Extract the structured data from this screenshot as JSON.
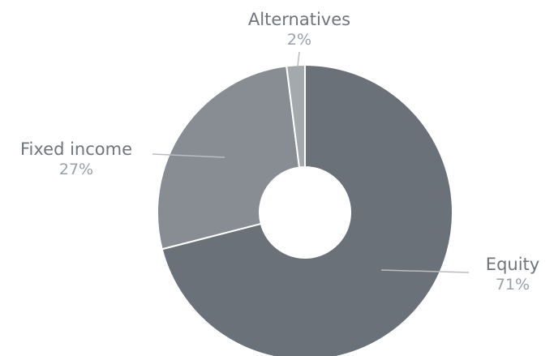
{
  "chart_data": {
    "type": "pie",
    "donut": true,
    "title": "",
    "legend": "none",
    "start_angle_deg": 0,
    "direction": "clockwise",
    "slices": [
      {
        "name": "Equity",
        "value": 71,
        "label": "71%",
        "color": "#6a7178"
      },
      {
        "name": "Fixed income",
        "value": 27,
        "label": "27%",
        "color": "#878d93"
      },
      {
        "name": "Alternatives",
        "value": 2,
        "label": "2%",
        "color": "#a4a9ae"
      }
    ]
  }
}
